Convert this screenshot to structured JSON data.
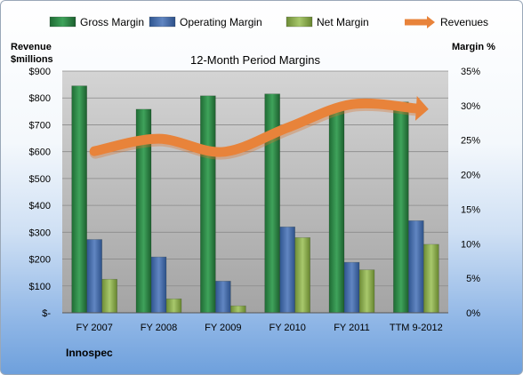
{
  "chart_data": {
    "type": "bar",
    "title": "12-Month Period Margins",
    "company": "Innospec",
    "categories": [
      "FY 2007",
      "FY 2008",
      "FY 2009",
      "FY 2010",
      "FY 2011",
      "TTM 9-2012"
    ],
    "ylabel_left": [
      "Revenue",
      "$millions"
    ],
    "ylabel_right": "Margin %",
    "ylim_left": [
      0,
      900
    ],
    "ylim_right": [
      0,
      35
    ],
    "left_ticks": [
      "$-",
      "$100",
      "$200",
      "$300",
      "$400",
      "$500",
      "$600",
      "$700",
      "$800",
      "$900"
    ],
    "right_ticks": [
      "0%",
      "5%",
      "10%",
      "15%",
      "20%",
      "25%",
      "30%",
      "35%"
    ],
    "grid": true,
    "legend_position": "top",
    "series": [
      {
        "name": "Gross Margin",
        "axis": "left",
        "color": "#2e8b48",
        "values": [
          845,
          758,
          808,
          815,
          765,
          785
        ]
      },
      {
        "name": "Operating Margin",
        "axis": "left",
        "color": "#4a72b0",
        "values": [
          273,
          208,
          118,
          320,
          188,
          343
        ]
      },
      {
        "name": "Net Margin",
        "axis": "left",
        "color": "#8fb255",
        "values": [
          125,
          52,
          26,
          280,
          160,
          255
        ]
      },
      {
        "name": "Revenues",
        "axis": "right",
        "type": "line",
        "color": "#e8833a",
        "values": [
          23.4,
          25.2,
          23.3,
          26.8,
          30.2,
          29.6
        ]
      }
    ]
  }
}
